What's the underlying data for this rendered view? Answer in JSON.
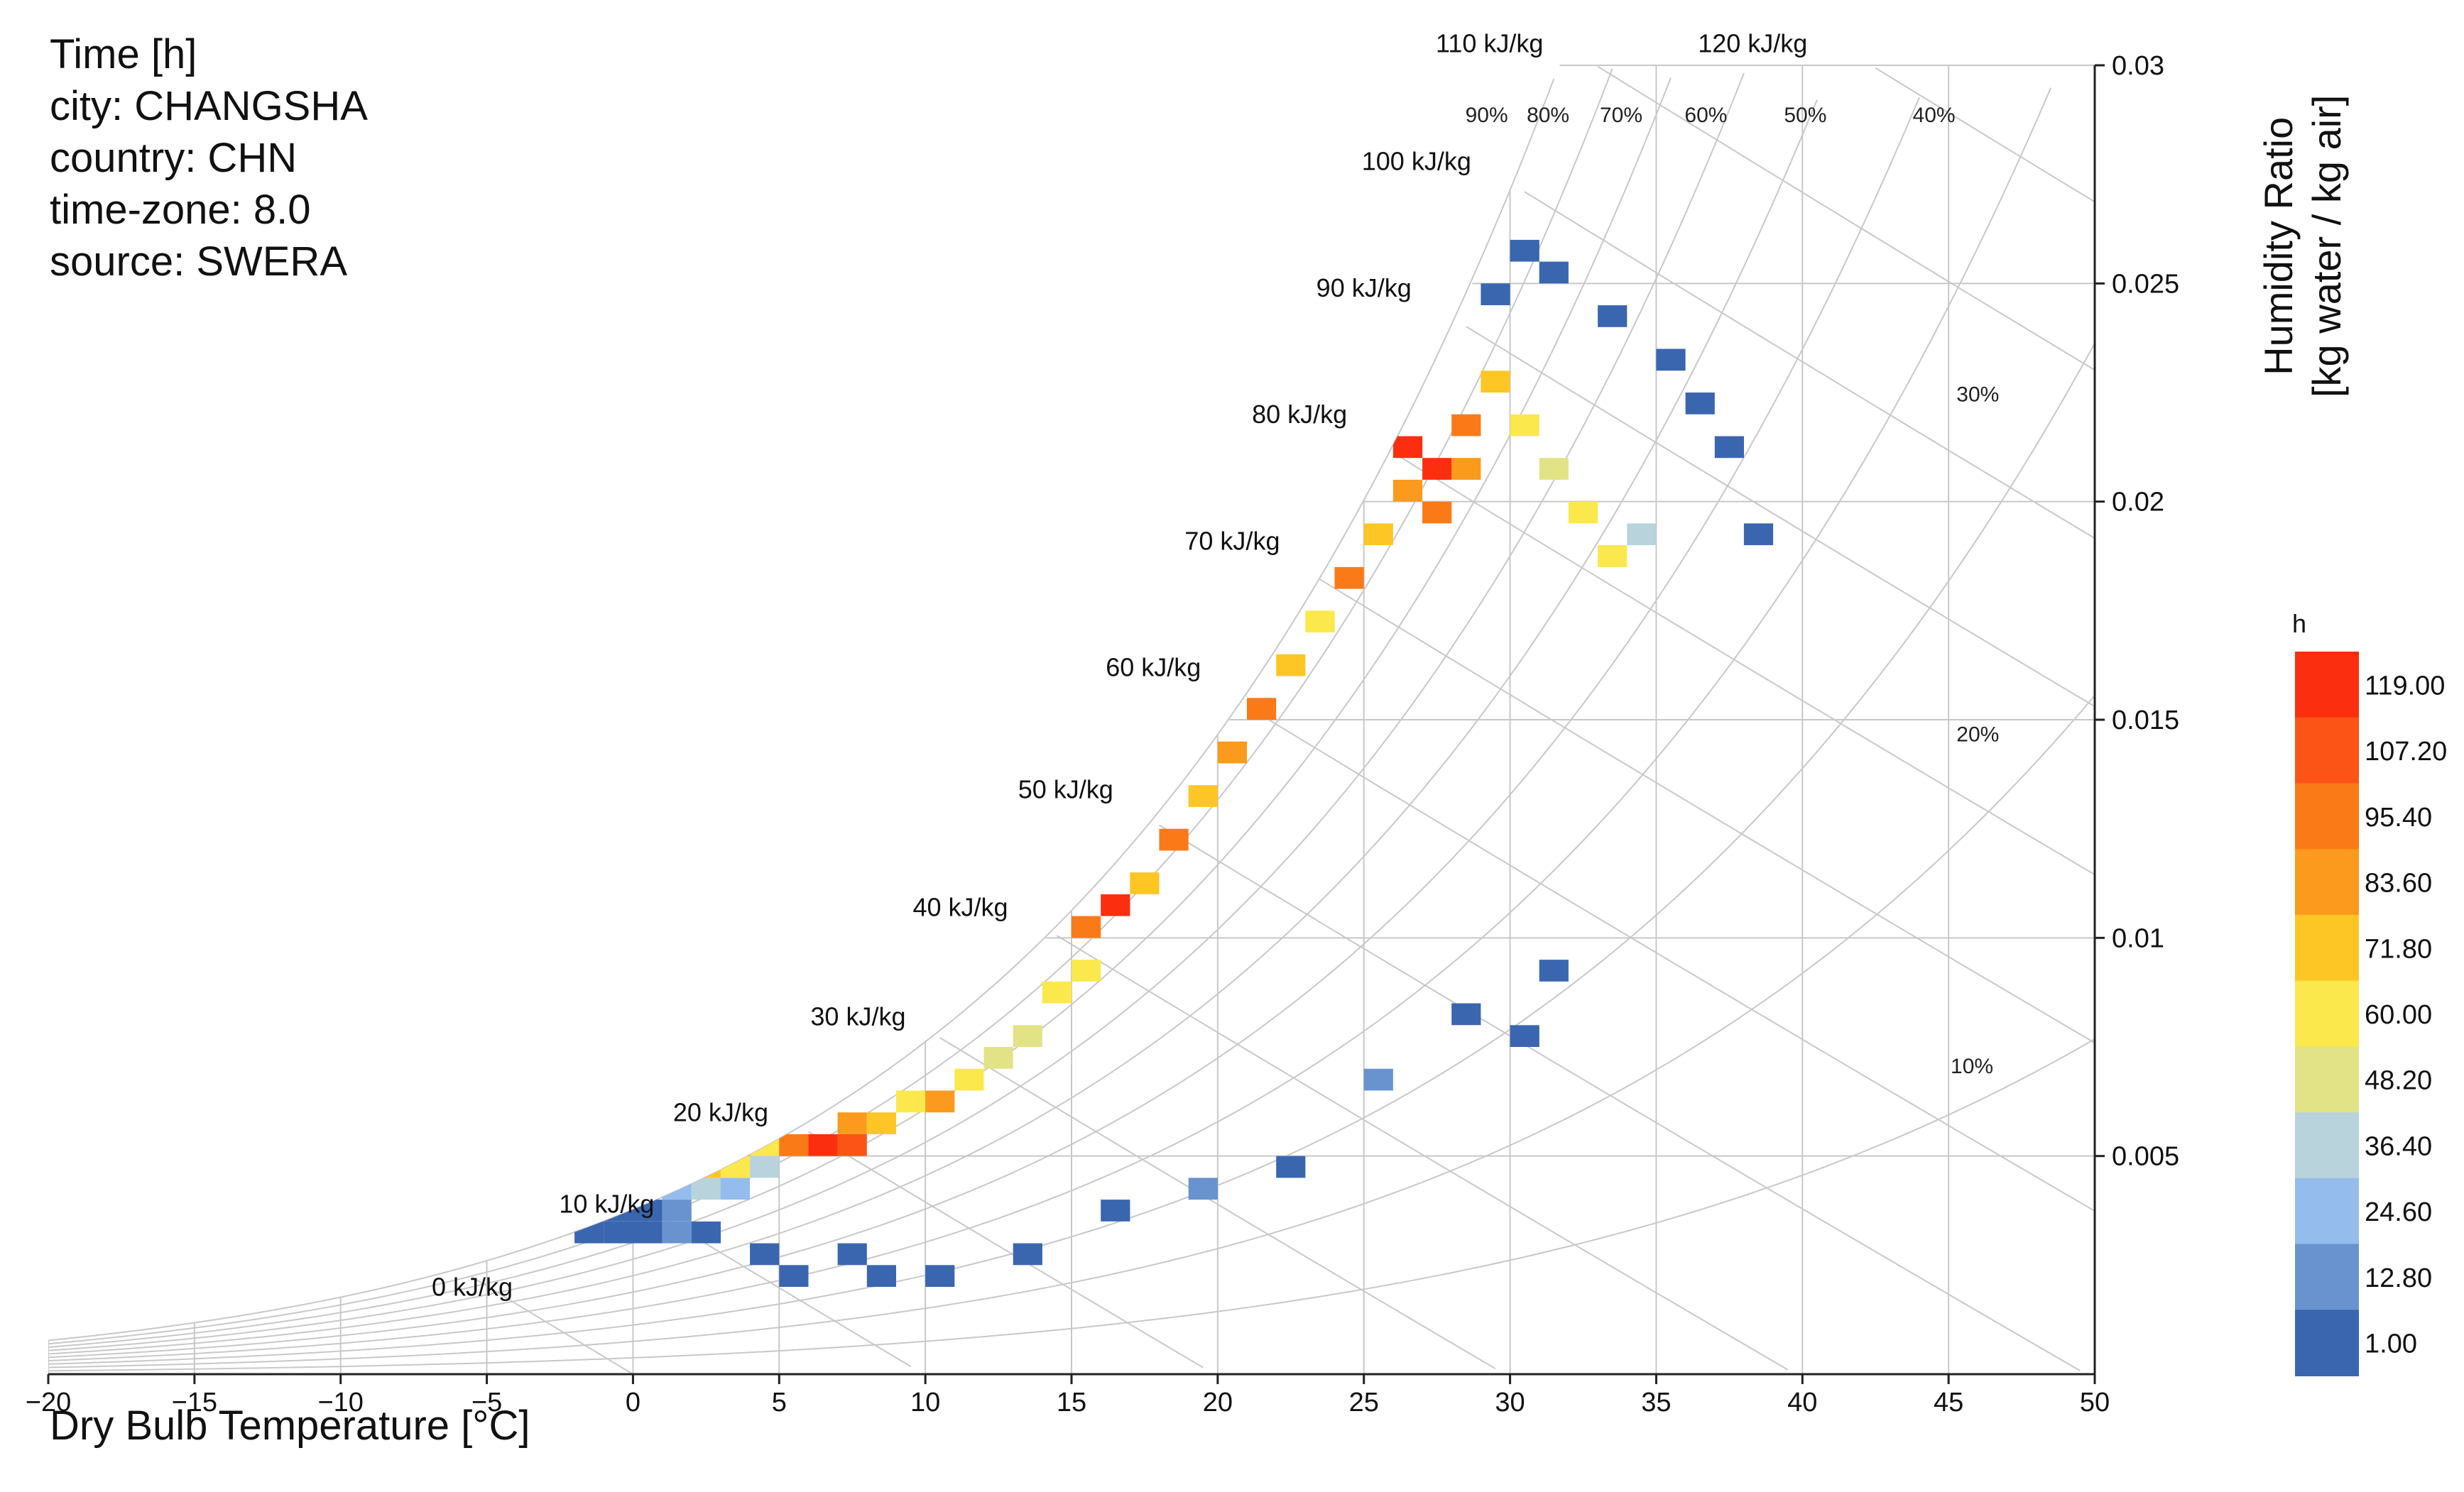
{
  "info": {
    "line1": "Time [h]",
    "line2": "city: CHANGSHA",
    "line3": "country: CHN",
    "line4": "time-zone: 8.0",
    "line5": "source: SWERA"
  },
  "chart_data": {
    "type": "heatmap",
    "title": "Time [h]",
    "xlabel": "Dry Bulb Temperature [°C]",
    "ylabel_line1": "Humidity Ratio",
    "ylabel_line2": "[kg water / kg air]",
    "xlim": [
      -20,
      50
    ],
    "ylim": [
      0,
      0.03
    ],
    "xticks": [
      -20,
      -15,
      -10,
      -5,
      0,
      5,
      10,
      15,
      20,
      25,
      30,
      35,
      40,
      45,
      50
    ],
    "xtick_labels": [
      "−20",
      "−15",
      "−10",
      "−5",
      "0",
      "5",
      "10",
      "15",
      "20",
      "25",
      "30",
      "35",
      "40",
      "45",
      "50"
    ],
    "yticks": [
      0.005,
      0.01,
      0.015,
      0.02,
      0.025,
      0.03
    ],
    "ytick_labels": [
      "0.005",
      "0.01",
      "0.015",
      "0.02",
      "0.025",
      "0.03"
    ],
    "enthalpy_lines": [
      0,
      10,
      20,
      30,
      40,
      50,
      60,
      70,
      80,
      90,
      100,
      110,
      120
    ],
    "enthalpy_labels": [
      "0 kJ/kg",
      "10 kJ/kg",
      "20 kJ/kg",
      "30 kJ/kg",
      "40 kJ/kg",
      "50 kJ/kg",
      "60 kJ/kg",
      "70 kJ/kg",
      "80 kJ/kg",
      "90 kJ/kg",
      "100 kJ/kg",
      "110 kJ/kg",
      "120 kJ/kg"
    ],
    "rh_labels": [
      {
        "rh": 90,
        "text": "90%"
      },
      {
        "rh": 80,
        "text": "80%"
      },
      {
        "rh": 70,
        "text": "70%"
      },
      {
        "rh": 60,
        "text": "60%"
      },
      {
        "rh": 50,
        "text": "50%"
      },
      {
        "rh": 40,
        "text": "40%"
      },
      {
        "rh": 30,
        "text": "30%"
      },
      {
        "rh": 20,
        "text": "20%"
      },
      {
        "rh": 10,
        "text": "10%"
      }
    ],
    "legend": {
      "title": "h",
      "labels": [
        "119.00",
        "107.20",
        "95.40",
        "83.60",
        "71.80",
        "60.00",
        "48.20",
        "36.40",
        "24.60",
        "12.80",
        "1.00"
      ],
      "colors": [
        "#fc2e10",
        "#fc5317",
        "#fb7a18",
        "#fb9a1c",
        "#fdc624",
        "#fbe84c",
        "#e2e386",
        "#b8d3dc",
        "#94bcec",
        "#6893cf",
        "#3a66b0"
      ],
      "min": 1.0,
      "max": 119.0
    },
    "bin_grid": {
      "x_step": 1,
      "w_step": 0.0005
    },
    "bins": [
      {
        "t": -2,
        "w": 0.003,
        "h": 3
      },
      {
        "t": -1,
        "w": 0.003,
        "h": 4
      },
      {
        "t": 0,
        "w": 0.003,
        "h": 3
      },
      {
        "t": -1,
        "w": 0.0035,
        "h": 5
      },
      {
        "t": 0,
        "w": 0.0035,
        "h": 6
      },
      {
        "t": 1,
        "w": 0.0035,
        "h": 8
      },
      {
        "t": 1,
        "w": 0.003,
        "h": 7
      },
      {
        "t": 2,
        "w": 0.003,
        "h": 5
      },
      {
        "t": 1,
        "w": 0.004,
        "h": 22
      },
      {
        "t": 2,
        "w": 0.004,
        "h": 40
      },
      {
        "t": 3,
        "w": 0.004,
        "h": 30
      },
      {
        "t": 2,
        "w": 0.0045,
        "h": 75
      },
      {
        "t": 3,
        "w": 0.0045,
        "h": 60
      },
      {
        "t": 4,
        "w": 0.0045,
        "h": 35
      },
      {
        "t": 3,
        "w": 0.005,
        "h": 80
      },
      {
        "t": 4,
        "w": 0.005,
        "h": 65
      },
      {
        "t": 5,
        "w": 0.005,
        "h": 90
      },
      {
        "t": 6,
        "w": 0.005,
        "h": 115
      },
      {
        "t": 7,
        "w": 0.005,
        "h": 105
      },
      {
        "t": 7,
        "w": 0.0055,
        "h": 85
      },
      {
        "t": 8,
        "w": 0.0055,
        "h": 72
      },
      {
        "t": 9,
        "w": 0.006,
        "h": 55
      },
      {
        "t": 10,
        "w": 0.006,
        "h": 80
      },
      {
        "t": 11,
        "w": 0.0065,
        "h": 62
      },
      {
        "t": 12,
        "w": 0.007,
        "h": 48
      },
      {
        "t": 13,
        "w": 0.0075,
        "h": 52
      },
      {
        "t": 14,
        "w": 0.0085,
        "h": 65
      },
      {
        "t": 15,
        "w": 0.009,
        "h": 60
      },
      {
        "t": 15,
        "w": 0.01,
        "h": 95
      },
      {
        "t": 16,
        "w": 0.0105,
        "h": 119
      },
      {
        "t": 17,
        "w": 0.011,
        "h": 70
      },
      {
        "t": 18,
        "w": 0.012,
        "h": 90
      },
      {
        "t": 19,
        "w": 0.013,
        "h": 75
      },
      {
        "t": 20,
        "w": 0.014,
        "h": 88
      },
      {
        "t": 21,
        "w": 0.015,
        "h": 95
      },
      {
        "t": 22,
        "w": 0.016,
        "h": 70
      },
      {
        "t": 23,
        "w": 0.017,
        "h": 65
      },
      {
        "t": 24,
        "w": 0.018,
        "h": 90
      },
      {
        "t": 25,
        "w": 0.019,
        "h": 70
      },
      {
        "t": 26,
        "w": 0.02,
        "h": 80
      },
      {
        "t": 26,
        "w": 0.021,
        "h": 115
      },
      {
        "t": 27,
        "w": 0.0205,
        "h": 119
      },
      {
        "t": 27,
        "w": 0.0195,
        "h": 100
      },
      {
        "t": 28,
        "w": 0.0215,
        "h": 95
      },
      {
        "t": 28,
        "w": 0.0205,
        "h": 80
      },
      {
        "t": 29,
        "w": 0.0225,
        "h": 70
      },
      {
        "t": 30,
        "w": 0.0215,
        "h": 60
      },
      {
        "t": 31,
        "w": 0.0205,
        "h": 45
      },
      {
        "t": 32,
        "w": 0.0195,
        "h": 55
      },
      {
        "t": 33,
        "w": 0.0185,
        "h": 58
      },
      {
        "t": 34,
        "w": 0.019,
        "h": 40
      },
      {
        "t": 29,
        "w": 0.0245,
        "h": 5
      },
      {
        "t": 30,
        "w": 0.0255,
        "h": 3
      },
      {
        "t": 31,
        "w": 0.025,
        "h": 4
      },
      {
        "t": 33,
        "w": 0.024,
        "h": 3
      },
      {
        "t": 35,
        "w": 0.023,
        "h": 5
      },
      {
        "t": 36,
        "w": 0.022,
        "h": 4
      },
      {
        "t": 37,
        "w": 0.021,
        "h": 3
      },
      {
        "t": 38,
        "w": 0.019,
        "h": 2
      },
      {
        "t": 30,
        "w": 0.0075,
        "h": 3
      },
      {
        "t": 31,
        "w": 0.009,
        "h": 4
      },
      {
        "t": 28,
        "w": 0.008,
        "h": 5
      },
      {
        "t": 25,
        "w": 0.0065,
        "h": 8
      },
      {
        "t": 22,
        "w": 0.0045,
        "h": 6
      },
      {
        "t": 19,
        "w": 0.004,
        "h": 7
      },
      {
        "t": 16,
        "w": 0.0035,
        "h": 6
      },
      {
        "t": 13,
        "w": 0.0025,
        "h": 5
      },
      {
        "t": 10,
        "w": 0.002,
        "h": 4
      },
      {
        "t": 8,
        "w": 0.002,
        "h": 3
      },
      {
        "t": 7,
        "w": 0.0025,
        "h": 2
      },
      {
        "t": 5,
        "w": 0.002,
        "h": 3
      },
      {
        "t": 4,
        "w": 0.0025,
        "h": 4
      }
    ]
  }
}
